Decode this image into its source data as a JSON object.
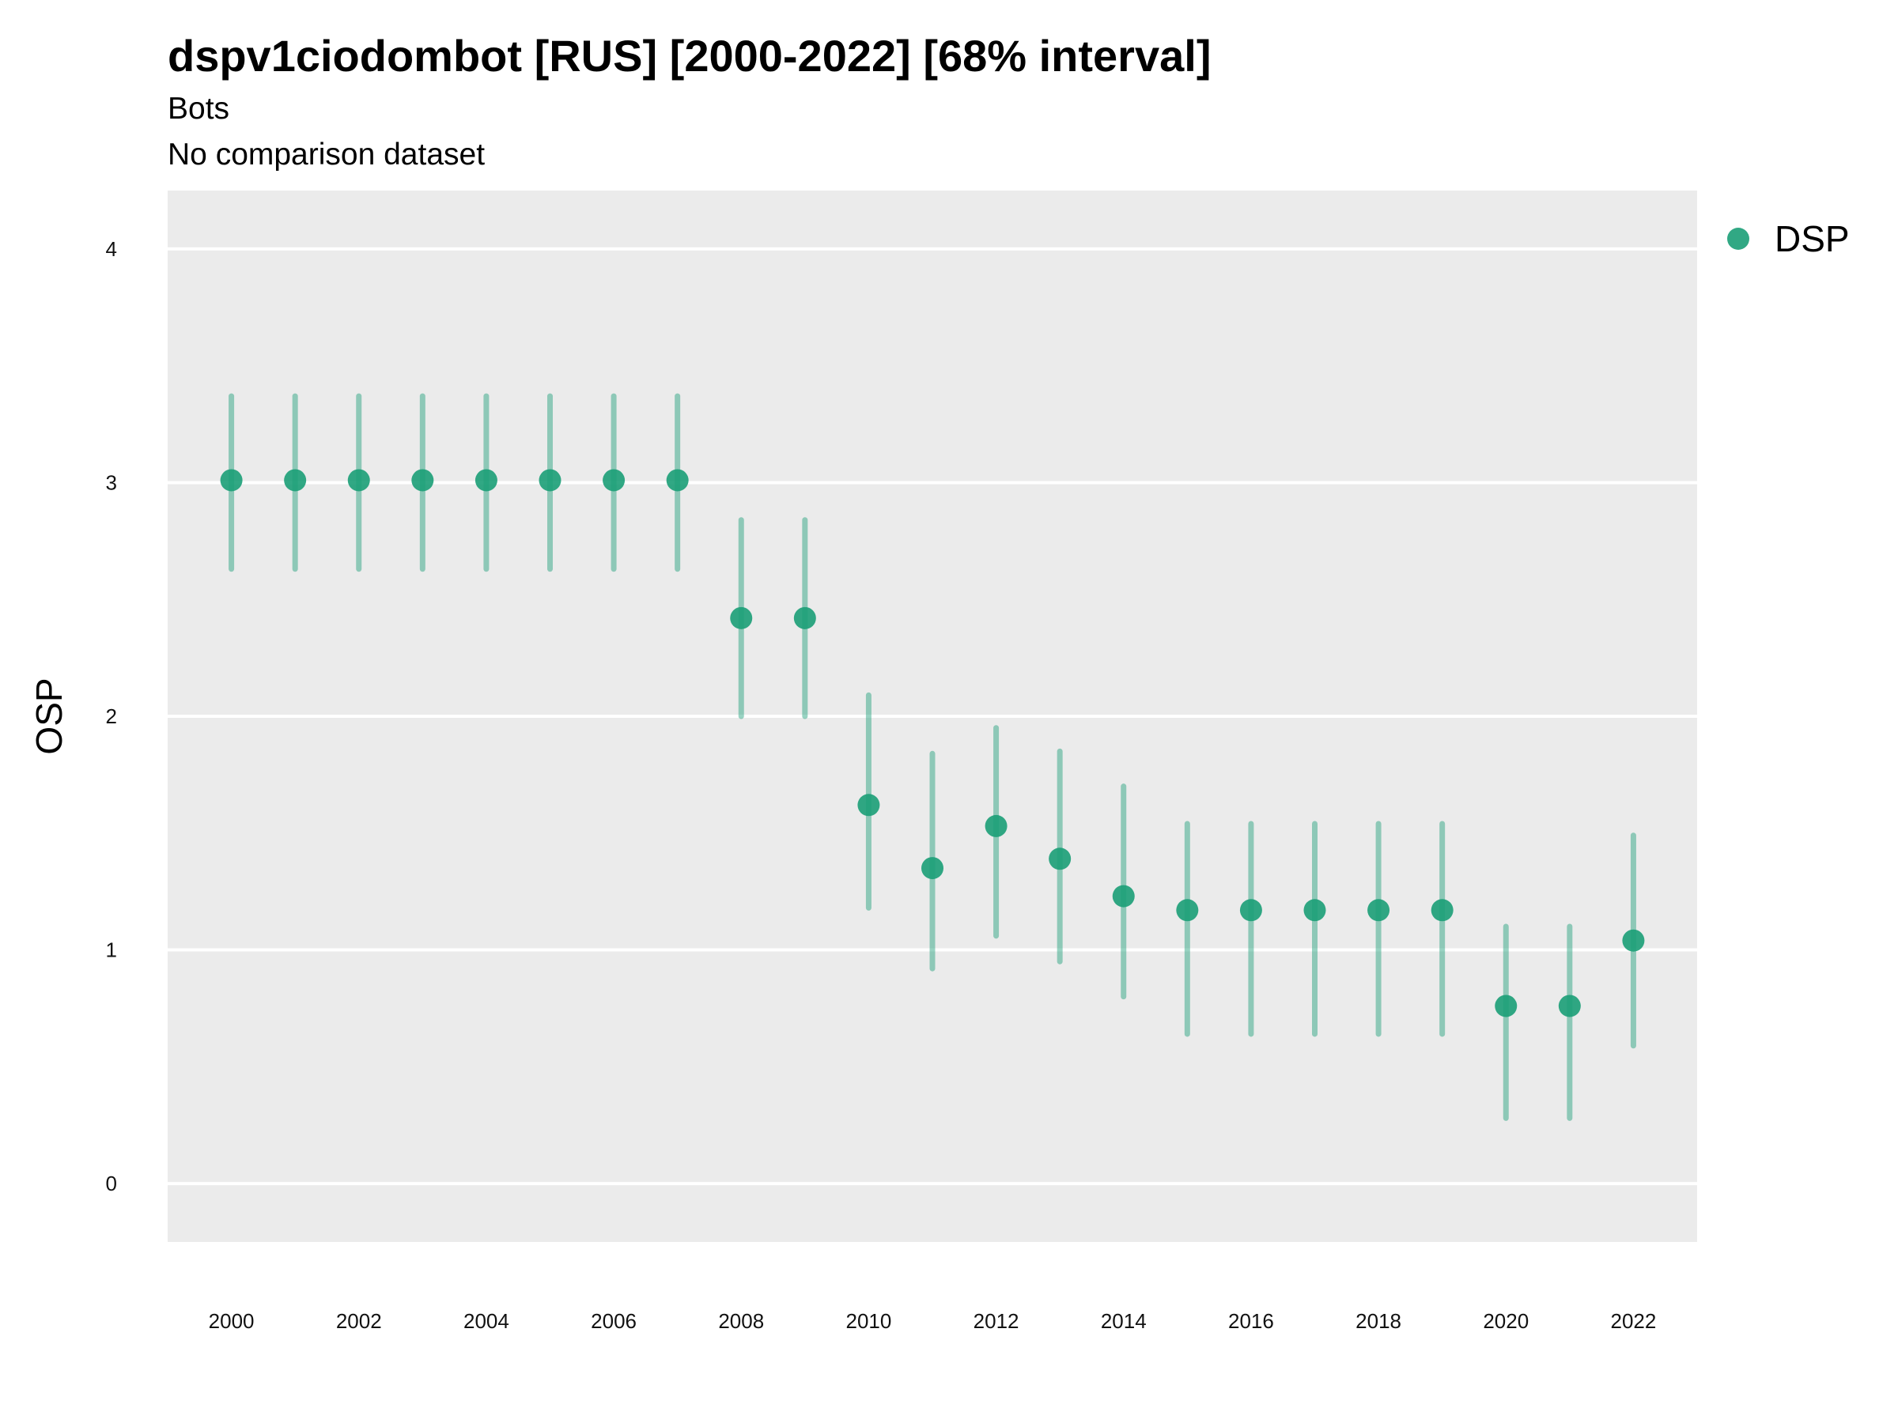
{
  "chart_data": {
    "type": "scatter",
    "title": "dspv1ciodombot [RUS] [2000-2022] [68% interval]",
    "subtitle": "Bots",
    "caption": "No comparison dataset",
    "xlabel": "",
    "ylabel": "OSP",
    "xlim": [
      1999,
      2023
    ],
    "ylim": [
      -0.25,
      4.25
    ],
    "x_ticks": [
      2000,
      2002,
      2004,
      2006,
      2008,
      2010,
      2012,
      2014,
      2016,
      2018,
      2020,
      2022
    ],
    "y_ticks": [
      0,
      1,
      2,
      3,
      4
    ],
    "grid": true,
    "legend": {
      "position": "top-right",
      "entries": [
        {
          "label": "DSP",
          "color": "#1b9e77"
        }
      ]
    },
    "series": [
      {
        "name": "DSP",
        "color": "#1b9e77",
        "x": [
          2000,
          2001,
          2002,
          2003,
          2004,
          2005,
          2006,
          2007,
          2008,
          2009,
          2010,
          2011,
          2012,
          2013,
          2014,
          2015,
          2016,
          2017,
          2018,
          2019,
          2020,
          2021,
          2022
        ],
        "y": [
          3.01,
          3.01,
          3.01,
          3.01,
          3.01,
          3.01,
          3.01,
          3.01,
          2.42,
          2.42,
          1.62,
          1.35,
          1.53,
          1.39,
          1.23,
          1.17,
          1.17,
          1.17,
          1.17,
          1.17,
          0.76,
          0.76,
          1.04
        ],
        "lower": [
          2.63,
          2.63,
          2.63,
          2.63,
          2.63,
          2.63,
          2.63,
          2.63,
          2.0,
          2.0,
          1.18,
          0.92,
          1.06,
          0.95,
          0.8,
          0.64,
          0.64,
          0.64,
          0.64,
          0.64,
          0.28,
          0.28,
          0.59
        ],
        "upper": [
          3.37,
          3.37,
          3.37,
          3.37,
          3.37,
          3.37,
          3.37,
          3.37,
          2.84,
          2.84,
          2.09,
          1.84,
          1.95,
          1.85,
          1.7,
          1.54,
          1.54,
          1.54,
          1.54,
          1.54,
          1.1,
          1.1,
          1.49
        ]
      }
    ]
  }
}
